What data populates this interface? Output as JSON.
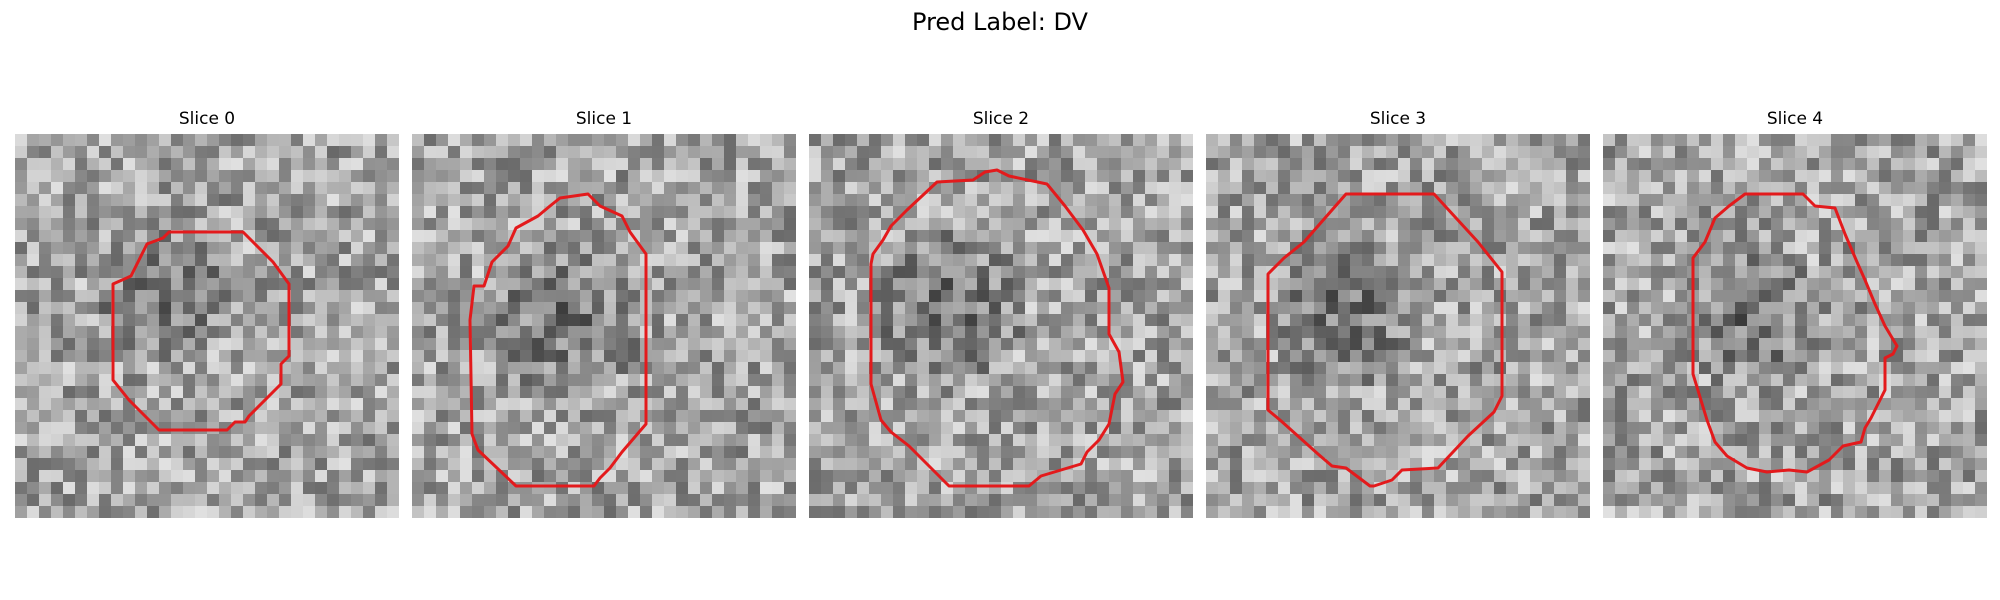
{
  "figure": {
    "title": "Pred Label: DV"
  },
  "colors": {
    "contour": "#e31a1c",
    "background": "#ffffff",
    "colormap": "gray"
  },
  "slices": [
    {
      "title": "Slice 0"
    },
    {
      "title": "Slice 1"
    },
    {
      "title": "Slice 2"
    },
    {
      "title": "Slice 3"
    },
    {
      "title": "Slice 4"
    }
  ]
}
